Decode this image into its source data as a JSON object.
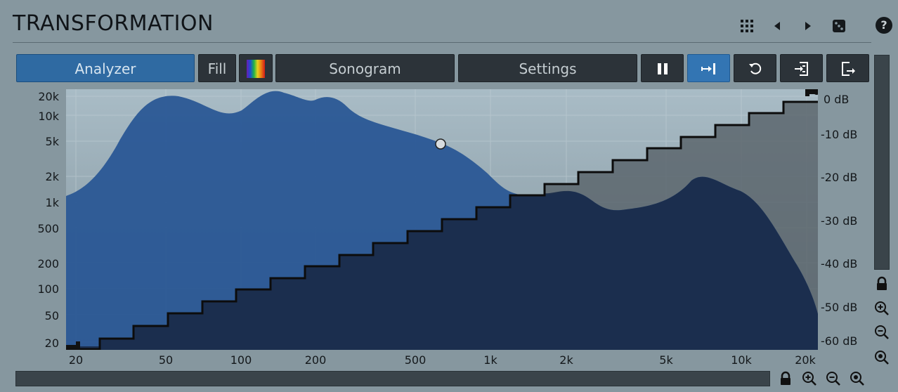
{
  "title": "TRANSFORMATION",
  "icons": {
    "grid": "grid-icon",
    "prev": "arrow-left-icon",
    "next": "arrow-right-icon",
    "random": "dice-icon",
    "help": "?"
  },
  "toolbar": {
    "analyzer": "Analyzer",
    "fill": "Fill",
    "sonogram": "Sonogram",
    "settings": "Settings"
  },
  "colors": {
    "accent": "#2f6aa2",
    "background": "#86979f",
    "spectrum": "#2a5795",
    "spectrum_dark": "#1a2c4a",
    "curve": "#101010"
  },
  "y_freq_labels": [
    "20k",
    "10k",
    "5k",
    "2k",
    "1k",
    "500",
    "200",
    "100",
    "50",
    "20"
  ],
  "db_labels": [
    "0 dB",
    "-10 dB",
    "-20 dB",
    "-30 dB",
    "-40 dB",
    "-50 dB",
    "-60 dB"
  ],
  "x_freq_labels": [
    "20",
    "50",
    "100",
    "200",
    "500",
    "1k",
    "2k",
    "5k",
    "10k",
    "20k"
  ]
}
